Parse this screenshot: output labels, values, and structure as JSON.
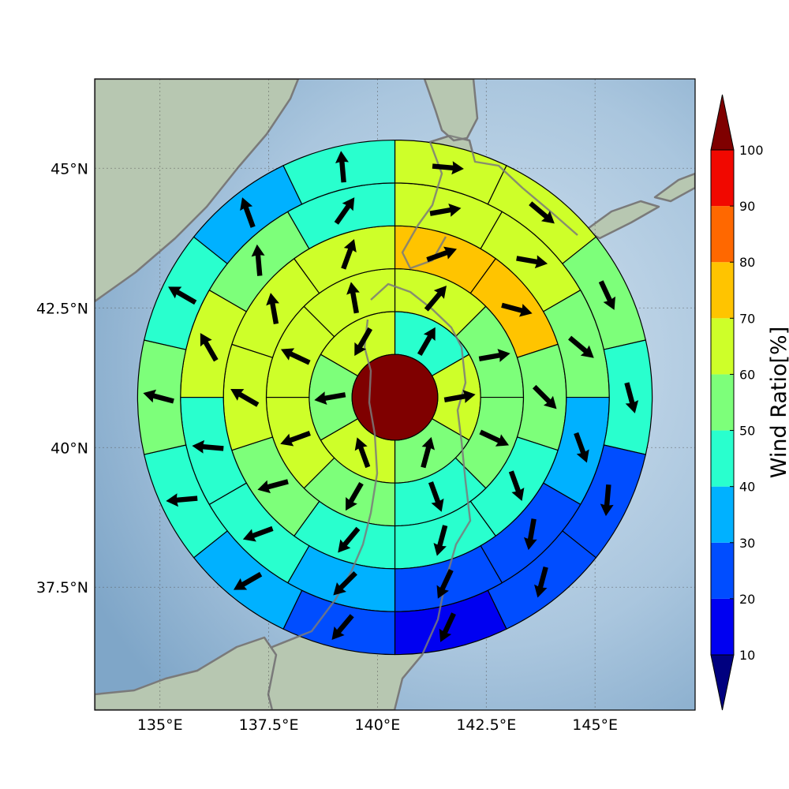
{
  "chart_data": {
    "type": "polar-sector-map",
    "title": "",
    "map": {
      "lon_range": [
        133.5,
        147.3
      ],
      "lat_range": [
        35.3,
        46.6
      ],
      "center": {
        "lon": 140.4,
        "lat": 40.9
      },
      "gridlines": true,
      "xticks": [
        {
          "value": 135,
          "label": "135°E"
        },
        {
          "value": 137.5,
          "label": "137.5°E"
        },
        {
          "value": 140,
          "label": "140°E"
        },
        {
          "value": 142.5,
          "label": "142.5°E"
        },
        {
          "value": 145,
          "label": "145°E"
        }
      ],
      "yticks": [
        {
          "value": 45,
          "label": "45°N"
        },
        {
          "value": 42.5,
          "label": "42.5°N"
        },
        {
          "value": 40,
          "label": "40°N"
        },
        {
          "value": 37.5,
          "label": "37.5°N"
        }
      ],
      "land_color": "#b7c7b1",
      "sea_color": "#b4cce3",
      "coast_color": "#7a7a7a"
    },
    "polar_grid": {
      "center_value": 100,
      "ring_radii_km": [
        100,
        200,
        300,
        400,
        500,
        600
      ],
      "sector_counts": [
        6,
        8,
        10,
        12,
        14
      ],
      "rings": [
        {
          "ratio": [
            45,
            60,
            55,
            60,
            55,
            65
          ],
          "dir": [
            30,
            80,
            15,
            -20,
            260,
            210
          ]
        },
        {
          "ratio": [
            65,
            55,
            50,
            45,
            55,
            60,
            60,
            65
          ],
          "dir": [
            40,
            80,
            115,
            160,
            210,
            250,
            295,
            -10
          ]
        },
        {
          "ratio": [
            70,
            75,
            55,
            45,
            40,
            45,
            50,
            60,
            65,
            60
          ],
          "dir": [
            70,
            105,
            135,
            160,
            195,
            220,
            255,
            300,
            -10,
            20
          ]
        },
        {
          "ratio": [
            60,
            60,
            55,
            35,
            25,
            25,
            30,
            40,
            40,
            65,
            55,
            45
          ],
          "dir": [
            80,
            100,
            130,
            160,
            190,
            205,
            225,
            250,
            275,
            330,
            355,
            35
          ]
        },
        {
          "ratio": [
            65,
            60,
            50,
            40,
            25,
            20,
            15,
            20,
            30,
            45,
            55,
            45,
            35,
            45
          ],
          "dir": [
            95,
            130,
            155,
            165,
            185,
            195,
            205,
            220,
            240,
            265,
            285,
            300,
            340,
            355
          ]
        }
      ]
    },
    "arrow_glyph": "black-arrow",
    "colorbar": {
      "label": "Wind Ratio[%]",
      "ticks": [
        10,
        20,
        30,
        40,
        50,
        60,
        70,
        80,
        90,
        100
      ],
      "bins": [
        {
          "min": 10,
          "max": 20,
          "color": "#0000f1"
        },
        {
          "min": 20,
          "max": 30,
          "color": "#004dff"
        },
        {
          "min": 30,
          "max": 40,
          "color": "#00b1ff"
        },
        {
          "min": 40,
          "max": 50,
          "color": "#29ffce"
        },
        {
          "min": 50,
          "max": 60,
          "color": "#7dff7a"
        },
        {
          "min": 60,
          "max": 70,
          "color": "#ceff29"
        },
        {
          "min": 70,
          "max": 80,
          "color": "#ffc400"
        },
        {
          "min": 80,
          "max": 90,
          "color": "#ff6800"
        },
        {
          "min": 90,
          "max": 100,
          "color": "#f10800"
        }
      ],
      "under_color": "#00007f",
      "over_color": "#7f0000"
    }
  }
}
